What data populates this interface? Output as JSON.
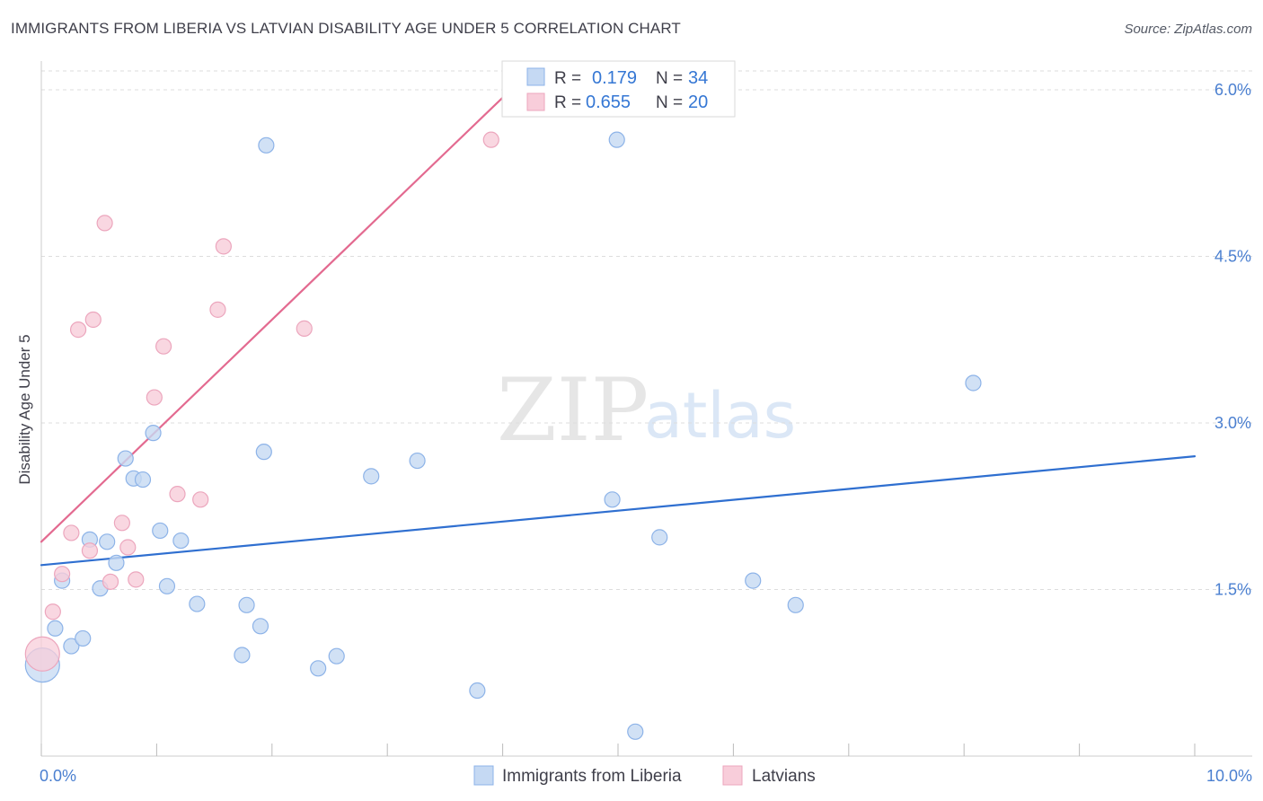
{
  "title": "IMMIGRANTS FROM LIBERIA VS LATVIAN DISABILITY AGE UNDER 5 CORRELATION CHART",
  "source": "Source: ZipAtlas.com",
  "watermark": {
    "zip": "ZIP",
    "atlas": "atlas"
  },
  "colors": {
    "blue_fill": "#c5d9f3",
    "blue_stroke": "#8db3e8",
    "blue_line": "#2f6fd0",
    "pink_fill": "#f8cdda",
    "pink_stroke": "#eca6bd",
    "pink_line": "#e36a90",
    "axis": "#cccccc",
    "grid": "#dddddd",
    "tick_label": "#4a7fd0"
  },
  "chart_data": {
    "type": "scatter",
    "title": "IMMIGRANTS FROM LIBERIA VS LATVIAN DISABILITY AGE UNDER 5 CORRELATION CHART",
    "xlabel": "",
    "ylabel": "Disability Age Under 5",
    "xlim": [
      0,
      10
    ],
    "ylim": [
      0,
      6.2
    ],
    "x_tick_labels": [
      {
        "value": 0,
        "label": "0.0%"
      },
      {
        "value": 10,
        "label": "10.0%"
      }
    ],
    "x_minor_ticks": [
      0,
      1,
      2,
      3,
      4,
      5,
      6,
      7,
      8,
      9,
      10
    ],
    "y_ticks": [
      {
        "value": 1.5,
        "label": "1.5%"
      },
      {
        "value": 3.0,
        "label": "3.0%"
      },
      {
        "value": 4.5,
        "label": "4.5%"
      },
      {
        "value": 6.0,
        "label": "6.0%"
      }
    ],
    "legend": {
      "r_label": "R =",
      "n_label": "N ="
    },
    "series": [
      {
        "name": "Immigrants from Liberia",
        "color": "blue",
        "r": "0.179",
        "n": "34",
        "trend": {
          "x0": 0.0,
          "y0": 1.72,
          "x1": 10.0,
          "y1": 2.7
        },
        "points": [
          {
            "x": 0.01,
            "y": 0.82,
            "big": true
          },
          {
            "x": 0.12,
            "y": 1.15
          },
          {
            "x": 0.18,
            "y": 1.58
          },
          {
            "x": 0.26,
            "y": 0.99
          },
          {
            "x": 0.36,
            "y": 1.06
          },
          {
            "x": 0.42,
            "y": 1.95
          },
          {
            "x": 0.51,
            "y": 1.51
          },
          {
            "x": 0.57,
            "y": 1.93
          },
          {
            "x": 0.65,
            "y": 1.74
          },
          {
            "x": 0.73,
            "y": 2.68
          },
          {
            "x": 0.8,
            "y": 2.5
          },
          {
            "x": 0.88,
            "y": 2.49
          },
          {
            "x": 0.97,
            "y": 2.91
          },
          {
            "x": 1.03,
            "y": 2.03
          },
          {
            "x": 1.09,
            "y": 1.53
          },
          {
            "x": 1.21,
            "y": 1.94
          },
          {
            "x": 1.35,
            "y": 1.37
          },
          {
            "x": 1.74,
            "y": 0.91
          },
          {
            "x": 1.78,
            "y": 1.36
          },
          {
            "x": 1.9,
            "y": 1.17
          },
          {
            "x": 1.93,
            "y": 2.74
          },
          {
            "x": 1.95,
            "y": 5.5
          },
          {
            "x": 2.4,
            "y": 0.79
          },
          {
            "x": 2.56,
            "y": 0.9
          },
          {
            "x": 2.86,
            "y": 2.52
          },
          {
            "x": 3.26,
            "y": 2.66
          },
          {
            "x": 3.78,
            "y": 0.59
          },
          {
            "x": 4.95,
            "y": 2.31
          },
          {
            "x": 4.99,
            "y": 5.55
          },
          {
            "x": 5.15,
            "y": 0.22
          },
          {
            "x": 5.36,
            "y": 1.97
          },
          {
            "x": 6.17,
            "y": 1.58
          },
          {
            "x": 6.54,
            "y": 1.36
          },
          {
            "x": 8.08,
            "y": 3.36
          }
        ]
      },
      {
        "name": "Latvians",
        "color": "pink",
        "r": "0.655",
        "n": "20",
        "trend": {
          "x0": 0.0,
          "y0": 1.93,
          "x1": 4.0,
          "y1": 5.93
        },
        "points": [
          {
            "x": 0.01,
            "y": 0.92,
            "big": true
          },
          {
            "x": 0.1,
            "y": 1.3
          },
          {
            "x": 0.18,
            "y": 1.64
          },
          {
            "x": 0.26,
            "y": 2.01
          },
          {
            "x": 0.32,
            "y": 3.84
          },
          {
            "x": 0.42,
            "y": 1.85
          },
          {
            "x": 0.45,
            "y": 3.93
          },
          {
            "x": 0.55,
            "y": 4.8
          },
          {
            "x": 0.6,
            "y": 1.57
          },
          {
            "x": 0.7,
            "y": 2.1
          },
          {
            "x": 0.75,
            "y": 1.88
          },
          {
            "x": 0.82,
            "y": 1.59
          },
          {
            "x": 0.98,
            "y": 3.23
          },
          {
            "x": 1.06,
            "y": 3.69
          },
          {
            "x": 1.18,
            "y": 2.36
          },
          {
            "x": 1.38,
            "y": 2.31
          },
          {
            "x": 1.53,
            "y": 4.02
          },
          {
            "x": 1.58,
            "y": 4.59
          },
          {
            "x": 2.28,
            "y": 3.85
          },
          {
            "x": 3.9,
            "y": 5.55
          }
        ]
      }
    ]
  }
}
